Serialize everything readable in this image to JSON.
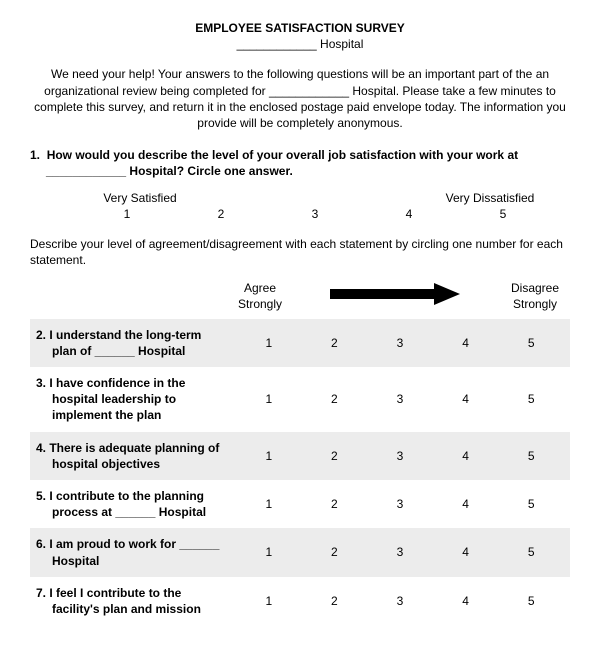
{
  "title": "EMPLOYEE SATISFACTION SURVEY",
  "subtitle": "____________ Hospital",
  "intro": "We need your help!  Your answers to the following questions will be an important part of the an organizational review being completed for ____________ Hospital.  Please take a few minutes to complete this survey, and return it in the enclosed postage paid envelope today. The information you provide will be completely anonymous.",
  "q1": {
    "num": "1.",
    "text": "How would you describe the level of your overall job satisfaction with your work at ____________ Hospital?  Circle one answer.",
    "left_label": "Very Satisfied",
    "right_label": "Very Dissatisfied",
    "values": [
      "1",
      "2",
      "3",
      "4",
      "5"
    ]
  },
  "instruct": "Describe your level of agreement/disagreement with each statement by circling one number for each statement.",
  "header": {
    "agree": "Agree Strongly",
    "disagree": "Disagree Strongly"
  },
  "scale_values": [
    "1",
    "2",
    "3",
    "4",
    "5"
  ],
  "statements": [
    {
      "num": "2.",
      "text": "I understand the long-term plan of ______  Hospital",
      "shade": true
    },
    {
      "num": "3.",
      "text": "I have confidence in the hospital leadership to implement the plan",
      "shade": false
    },
    {
      "num": "4.",
      "text": "There is adequate planning of hospital objectives",
      "shade": true
    },
    {
      "num": "5.",
      "text": "I contribute to the planning process at ______  Hospital",
      "shade": false
    },
    {
      "num": "6.",
      "text": "I am proud to work for ______  Hospital",
      "shade": true
    },
    {
      "num": "7.",
      "text": "I feel I contribute to the facility's plan and mission",
      "shade": false
    }
  ],
  "colors": {
    "shade_bg": "#ececec",
    "text": "#000000",
    "arrow": "#000000"
  }
}
